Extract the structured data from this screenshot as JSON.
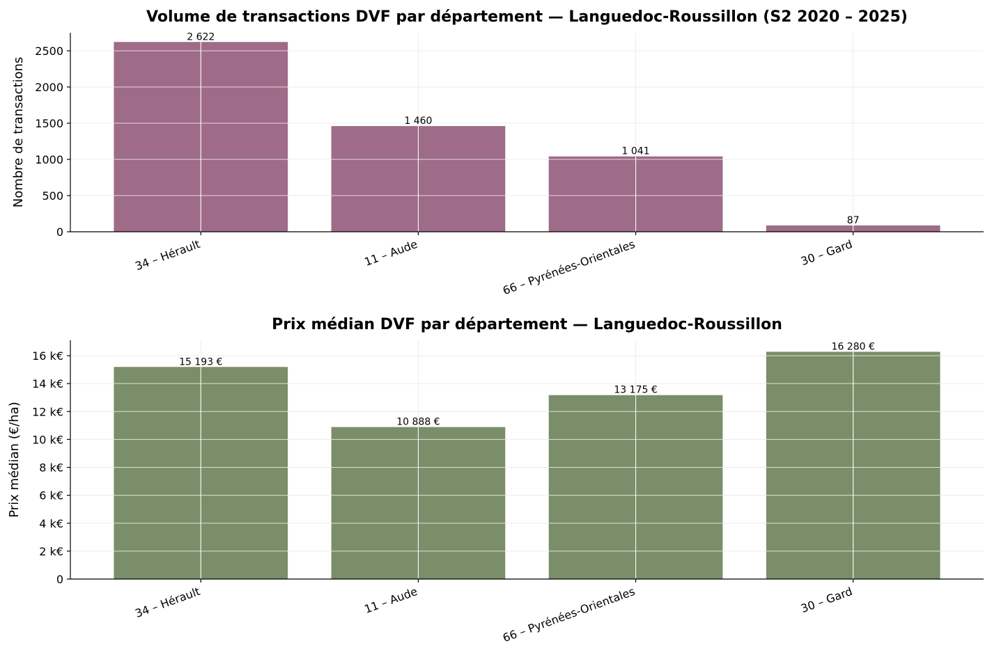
{
  "chart_data": [
    {
      "type": "bar",
      "title": "Volume de transactions DVF par département — Languedoc-Roussillon (S2 2020 – 2025)",
      "xlabel": "",
      "ylabel": "Nombre de transactions",
      "categories": [
        "34 – Hérault",
        "11 – Aude",
        "66 – Pyrénées-Orientales",
        "30 – Gard"
      ],
      "values": [
        2622,
        1460,
        1041,
        87
      ],
      "value_labels": [
        "2 622",
        "1 460",
        "1 041",
        "87"
      ],
      "ylim": [
        0,
        2750
      ],
      "yticks": [
        0,
        500,
        1000,
        1500,
        2000,
        2500
      ],
      "ytick_labels": [
        "0",
        "500",
        "1000",
        "1500",
        "2000",
        "2500"
      ],
      "color": "#9e6b88",
      "grid": true
    },
    {
      "type": "bar",
      "title": "Prix médian DVF par département — Languedoc-Roussillon",
      "xlabel": "",
      "ylabel": "Prix médian (€/ha)",
      "categories": [
        "34 – Hérault",
        "11 – Aude",
        "66 – Pyrénées-Orientales",
        "30 – Gard"
      ],
      "values": [
        15193,
        10888,
        13175,
        16280
      ],
      "value_labels": [
        "15 193 €",
        "10 888 €",
        "13 175 €",
        "16 280 €"
      ],
      "ylim": [
        0,
        17100
      ],
      "yticks": [
        0,
        2000,
        4000,
        6000,
        8000,
        10000,
        12000,
        14000,
        16000
      ],
      "ytick_labels": [
        "0",
        "2 k€",
        "4 k€",
        "6 k€",
        "8 k€",
        "10 k€",
        "12 k€",
        "14 k€",
        "16 k€"
      ],
      "color": "#7a8e69",
      "grid": true
    }
  ]
}
